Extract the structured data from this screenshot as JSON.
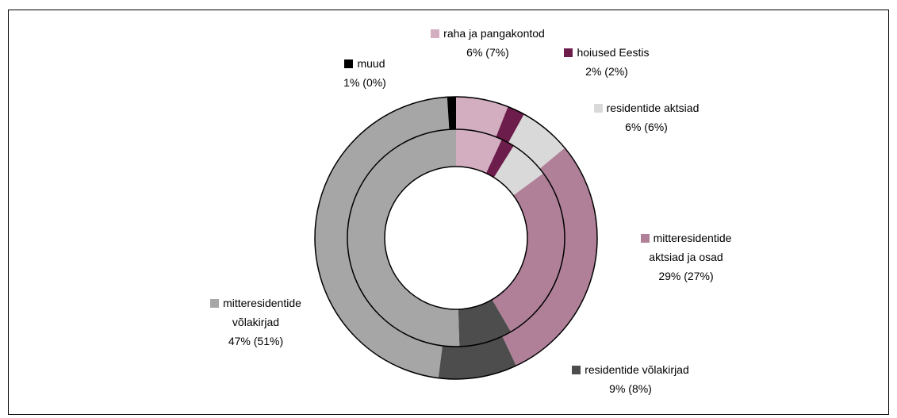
{
  "chart_data": {
    "type": "donut",
    "categories": [
      "raha ja pangakontod",
      "hoiused Eestis",
      "residentide aktsiad",
      "mitteresidentide aktsiad ja osad",
      "residentide võlakirjad",
      "mitteresidentide võlakirjad",
      "muud"
    ],
    "colors": [
      "#d3aec1",
      "#6d1d4b",
      "#d9d9d9",
      "#b08099",
      "#4d4d4d",
      "#a6a6a6",
      "#000000"
    ],
    "series": [
      {
        "values": [
          6,
          2,
          6,
          29,
          9,
          47,
          1
        ]
      },
      {
        "values": [
          7,
          2,
          6,
          27,
          8,
          51,
          0
        ]
      }
    ],
    "value_labels": [
      "6% (7%)",
      "2% (2%)",
      "6% (6%)",
      "29% (27%)",
      "9% (8%)",
      "47% (51%)",
      "1% (0%)"
    ]
  }
}
